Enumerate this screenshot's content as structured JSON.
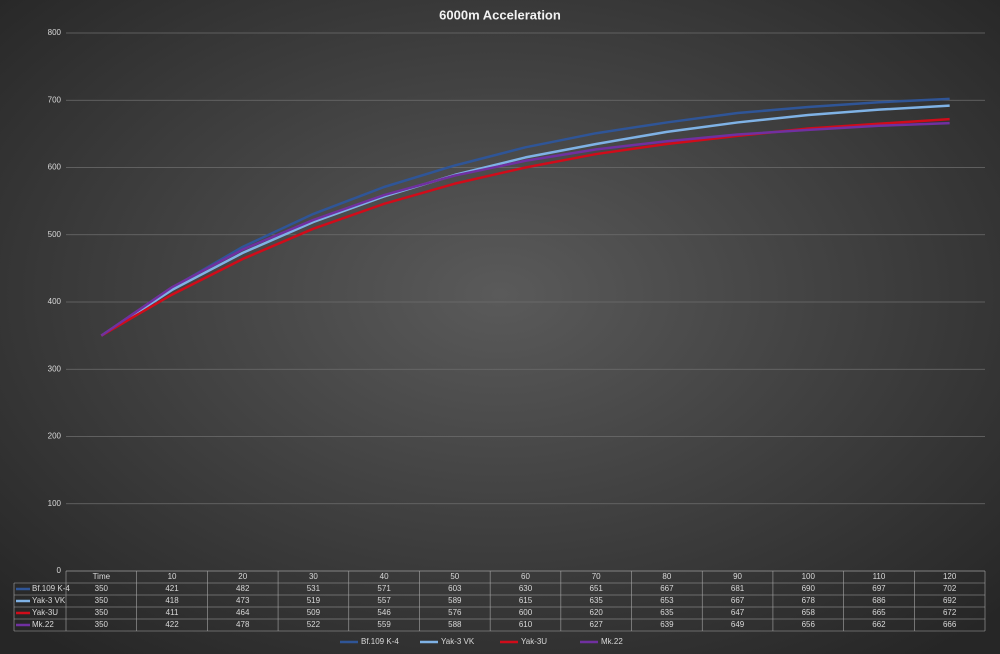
{
  "chart_data": {
    "type": "line",
    "title": "6000m Acceleration",
    "categories": [
      "Time",
      "10",
      "20",
      "30",
      "40",
      "50",
      "60",
      "70",
      "80",
      "90",
      "100",
      "110",
      "120"
    ],
    "series": [
      {
        "name": "Bf.109 K-4",
        "color": "#2f5597",
        "values": [
          350,
          421,
          482,
          531,
          571,
          603,
          630,
          651,
          667,
          681,
          690,
          697,
          702
        ]
      },
      {
        "name": "Yak-3 VK",
        "color": "#7fb2e5",
        "values": [
          350,
          418,
          473,
          519,
          557,
          589,
          615,
          635,
          653,
          667,
          678,
          686,
          692
        ]
      },
      {
        "name": "Yak-3U",
        "color": "#d00c1a",
        "values": [
          350,
          411,
          464,
          509,
          546,
          576,
          600,
          620,
          635,
          647,
          658,
          665,
          672
        ]
      },
      {
        "name": "Mk.22",
        "color": "#7030a0",
        "values": [
          350,
          422,
          478,
          522,
          559,
          588,
          610,
          627,
          639,
          649,
          656,
          662,
          666
        ]
      }
    ],
    "ylim": [
      0,
      800
    ],
    "yticks": [
      0,
      100,
      200,
      300,
      400,
      500,
      600,
      700,
      800
    ],
    "grid": true,
    "legend": "bottom"
  }
}
